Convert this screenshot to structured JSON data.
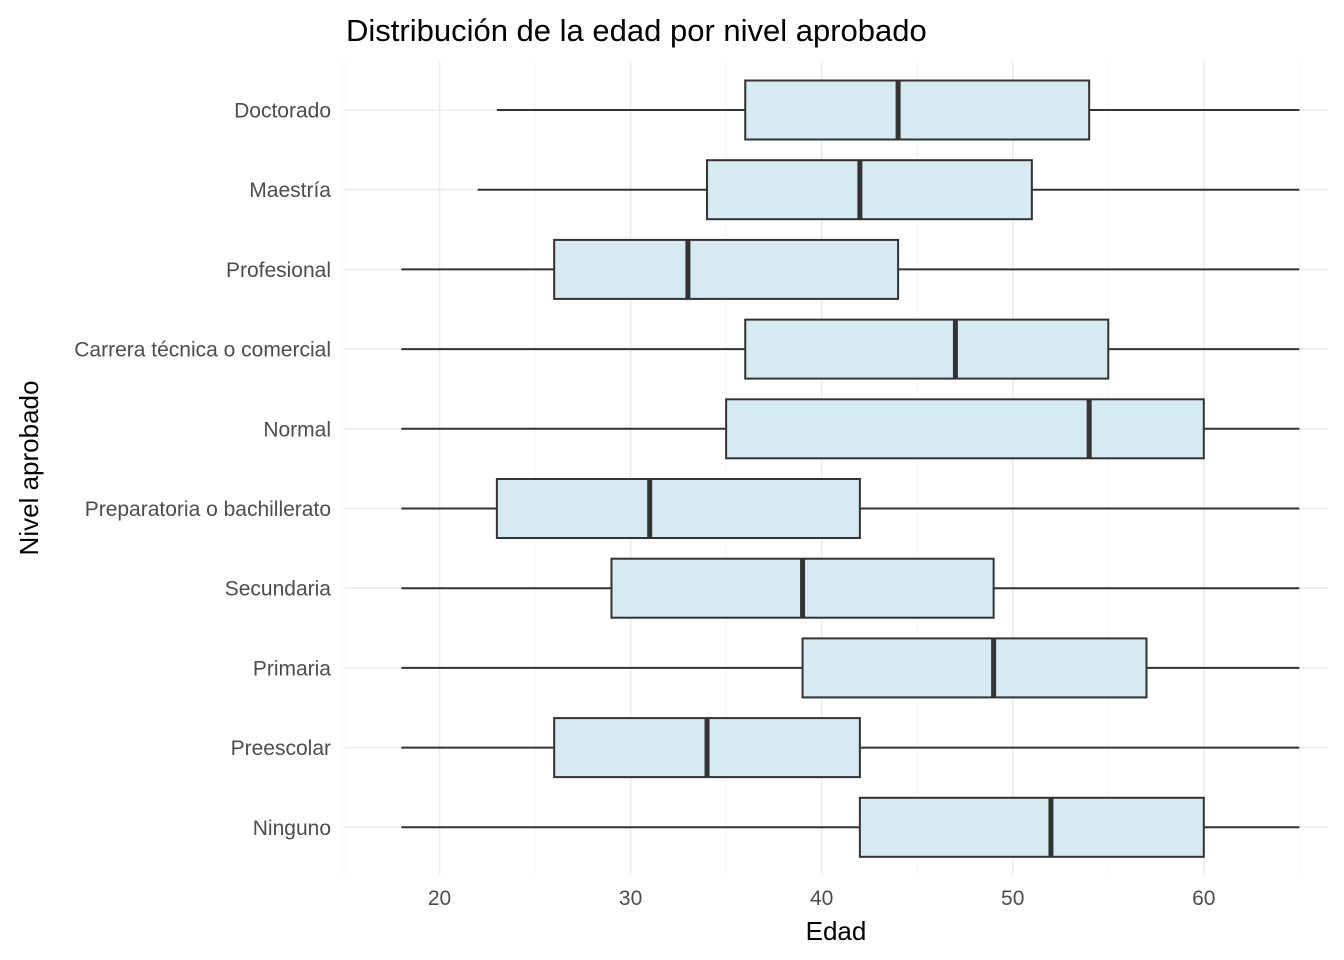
{
  "chart_data": {
    "type": "boxplot",
    "orientation": "horizontal",
    "title": "Distribución de la edad por nivel aprobado",
    "xlabel": "Edad",
    "ylabel": "Nivel aprobado",
    "xlim": [
      15,
      66.5
    ],
    "xticks": [
      20,
      30,
      40,
      50,
      60
    ],
    "grid": true,
    "box_color": "#d6eaf2",
    "line_color": "#333333",
    "categories": [
      "Doctorado",
      "Maestría",
      "Profesional",
      "Carrera técnica o comercial",
      "Normal",
      "Preparatoria o bachillerato",
      "Secundaria",
      "Primaria",
      "Preescolar",
      "Ninguno"
    ],
    "boxes": [
      {
        "min": 23,
        "q1": 36,
        "median": 44,
        "q3": 54,
        "max": 65
      },
      {
        "min": 22,
        "q1": 34,
        "median": 42,
        "q3": 51,
        "max": 65
      },
      {
        "min": 18,
        "q1": 26,
        "median": 33,
        "q3": 44,
        "max": 65
      },
      {
        "min": 18,
        "q1": 36,
        "median": 47,
        "q3": 55,
        "max": 65
      },
      {
        "min": 18,
        "q1": 35,
        "median": 54,
        "q3": 60,
        "max": 65
      },
      {
        "min": 18,
        "q1": 23,
        "median": 31,
        "q3": 42,
        "max": 65
      },
      {
        "min": 18,
        "q1": 29,
        "median": 39,
        "q3": 49,
        "max": 65
      },
      {
        "min": 18,
        "q1": 39,
        "median": 49,
        "q3": 57,
        "max": 65
      },
      {
        "min": 18,
        "q1": 26,
        "median": 34,
        "q3": 42,
        "max": 65
      },
      {
        "min": 18,
        "q1": 42,
        "median": 52,
        "q3": 60,
        "max": 65
      }
    ]
  }
}
